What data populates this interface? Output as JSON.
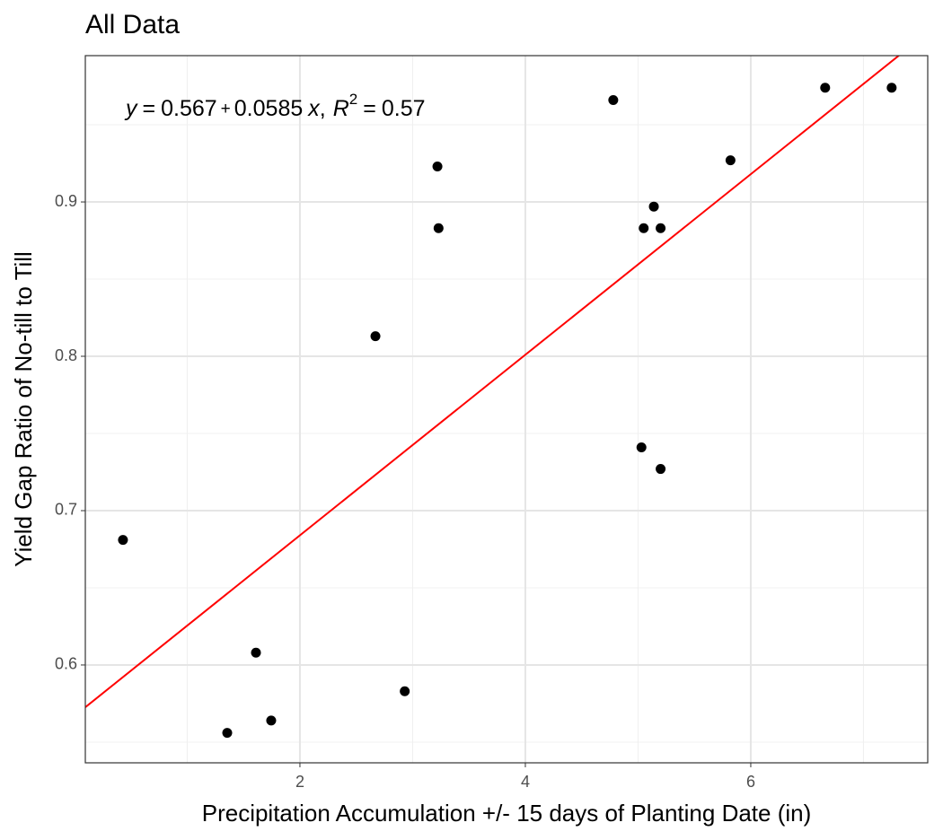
{
  "chart_data": {
    "type": "scatter",
    "title": "All Data",
    "x_label": "Precipitation Accumulation +/- 15 days of Planting Date (in)",
    "y_label": "Yield Gap Ratio of No-till to Till",
    "x": [
      0.43,
      1.355,
      1.61,
      1.745,
      2.67,
      2.93,
      3.22,
      3.23,
      4.78,
      5.03,
      5.05,
      5.14,
      5.2,
      5.2,
      5.82,
      6.66,
      7.25
    ],
    "values": [
      0.681,
      0.556,
      0.608,
      0.564,
      0.813,
      0.583,
      0.923,
      0.883,
      0.966,
      0.741,
      0.883,
      0.897,
      0.883,
      0.727,
      0.927,
      0.974,
      0.974
    ],
    "color": "#000000",
    "xlim": [
      0.096,
      7.57
    ],
    "ylim": [
      0.5366,
      0.9948
    ],
    "xticks": [
      2,
      4,
      6
    ],
    "yticks": [
      0.6,
      0.7,
      0.8,
      0.9
    ],
    "grid": true,
    "fit": {
      "intercept": 0.567,
      "slope": 0.0585,
      "r2": 0.57,
      "color": "#ff0000",
      "y_symbol": "y",
      "x_symbol": "x",
      "r2_symbol": "R",
      "r2_exponent": "2",
      "equals": "=",
      "plus": "+",
      "separator": ","
    }
  }
}
